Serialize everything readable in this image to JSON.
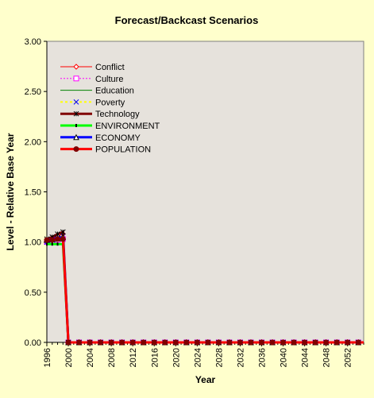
{
  "chart_data": {
    "type": "line",
    "title": "Forecast/Backcast Scenarios",
    "xlabel": "Year",
    "ylabel": "Level - Relative Base Year",
    "xlim": [
      1996,
      2055
    ],
    "ylim": [
      0,
      3
    ],
    "y_ticks": [
      "0.00",
      "0.50",
      "1.00",
      "1.50",
      "2.00",
      "2.50",
      "3.00"
    ],
    "x_ticks": [
      "1996",
      "2000",
      "2004",
      "2008",
      "2012",
      "2016",
      "2020",
      "2024",
      "2028",
      "2032",
      "2036",
      "2040",
      "2044",
      "2048",
      "2052"
    ],
    "grid": false,
    "legend_position": "top-left",
    "plot_background": "#e6e2dc",
    "chart_background": "#ffffcc",
    "x": [
      1996,
      1997,
      1998,
      1999,
      2000,
      2001,
      2002,
      2003,
      2004,
      2005,
      2006,
      2007,
      2008,
      2009,
      2010,
      2011,
      2012,
      2013,
      2014,
      2015,
      2016,
      2017,
      2018,
      2019,
      2020,
      2021,
      2022,
      2023,
      2024,
      2025,
      2026,
      2027,
      2028,
      2029,
      2030,
      2031,
      2032,
      2033,
      2034,
      2035,
      2036,
      2037,
      2038,
      2039,
      2040,
      2041,
      2042,
      2043,
      2044,
      2045,
      2046,
      2047,
      2048,
      2049,
      2050,
      2051,
      2052,
      2053,
      2054,
      2055
    ],
    "series": [
      {
        "name": "Conflict",
        "color": "#ff0000",
        "marker": "diamond",
        "dash": "",
        "width": 1,
        "head": [
          1.02,
          1.04,
          1.06,
          1.08,
          0
        ]
      },
      {
        "name": "Culture",
        "color": "#ff00ff",
        "marker": "square",
        "dash": "2,2",
        "width": 1,
        "head": [
          1.0,
          1.01,
          1.02,
          1.03,
          0
        ]
      },
      {
        "name": "Education",
        "color": "#008000",
        "marker": "none",
        "dash": "",
        "width": 1,
        "head": [
          1.0,
          1.0,
          1.01,
          1.01,
          0
        ]
      },
      {
        "name": "Poverty",
        "color": "#ffff00",
        "marker": "x",
        "dash": "3,3",
        "width": 2,
        "head": [
          1.0,
          1.02,
          1.04,
          1.06,
          0
        ]
      },
      {
        "name": "Technology",
        "color": "#800000",
        "marker": "star",
        "dash": "",
        "width": 3,
        "head": [
          1.03,
          1.05,
          1.08,
          1.1,
          0
        ]
      },
      {
        "name": "ENVIRONMENT",
        "color": "#00ff00",
        "marker": "bar",
        "dash": "",
        "width": 3,
        "head": [
          0.98,
          0.98,
          0.98,
          0.98,
          0
        ]
      },
      {
        "name": "ECONOMY",
        "color": "#0000ff",
        "marker": "triangle",
        "dash": "",
        "width": 3,
        "head": [
          1.02,
          1.03,
          1.04,
          1.05,
          0
        ]
      },
      {
        "name": "POPULATION",
        "color": "#ff0000",
        "marker": "circle",
        "dash": "",
        "width": 3,
        "head": [
          1.02,
          1.02,
          1.03,
          1.03,
          0
        ]
      }
    ]
  }
}
